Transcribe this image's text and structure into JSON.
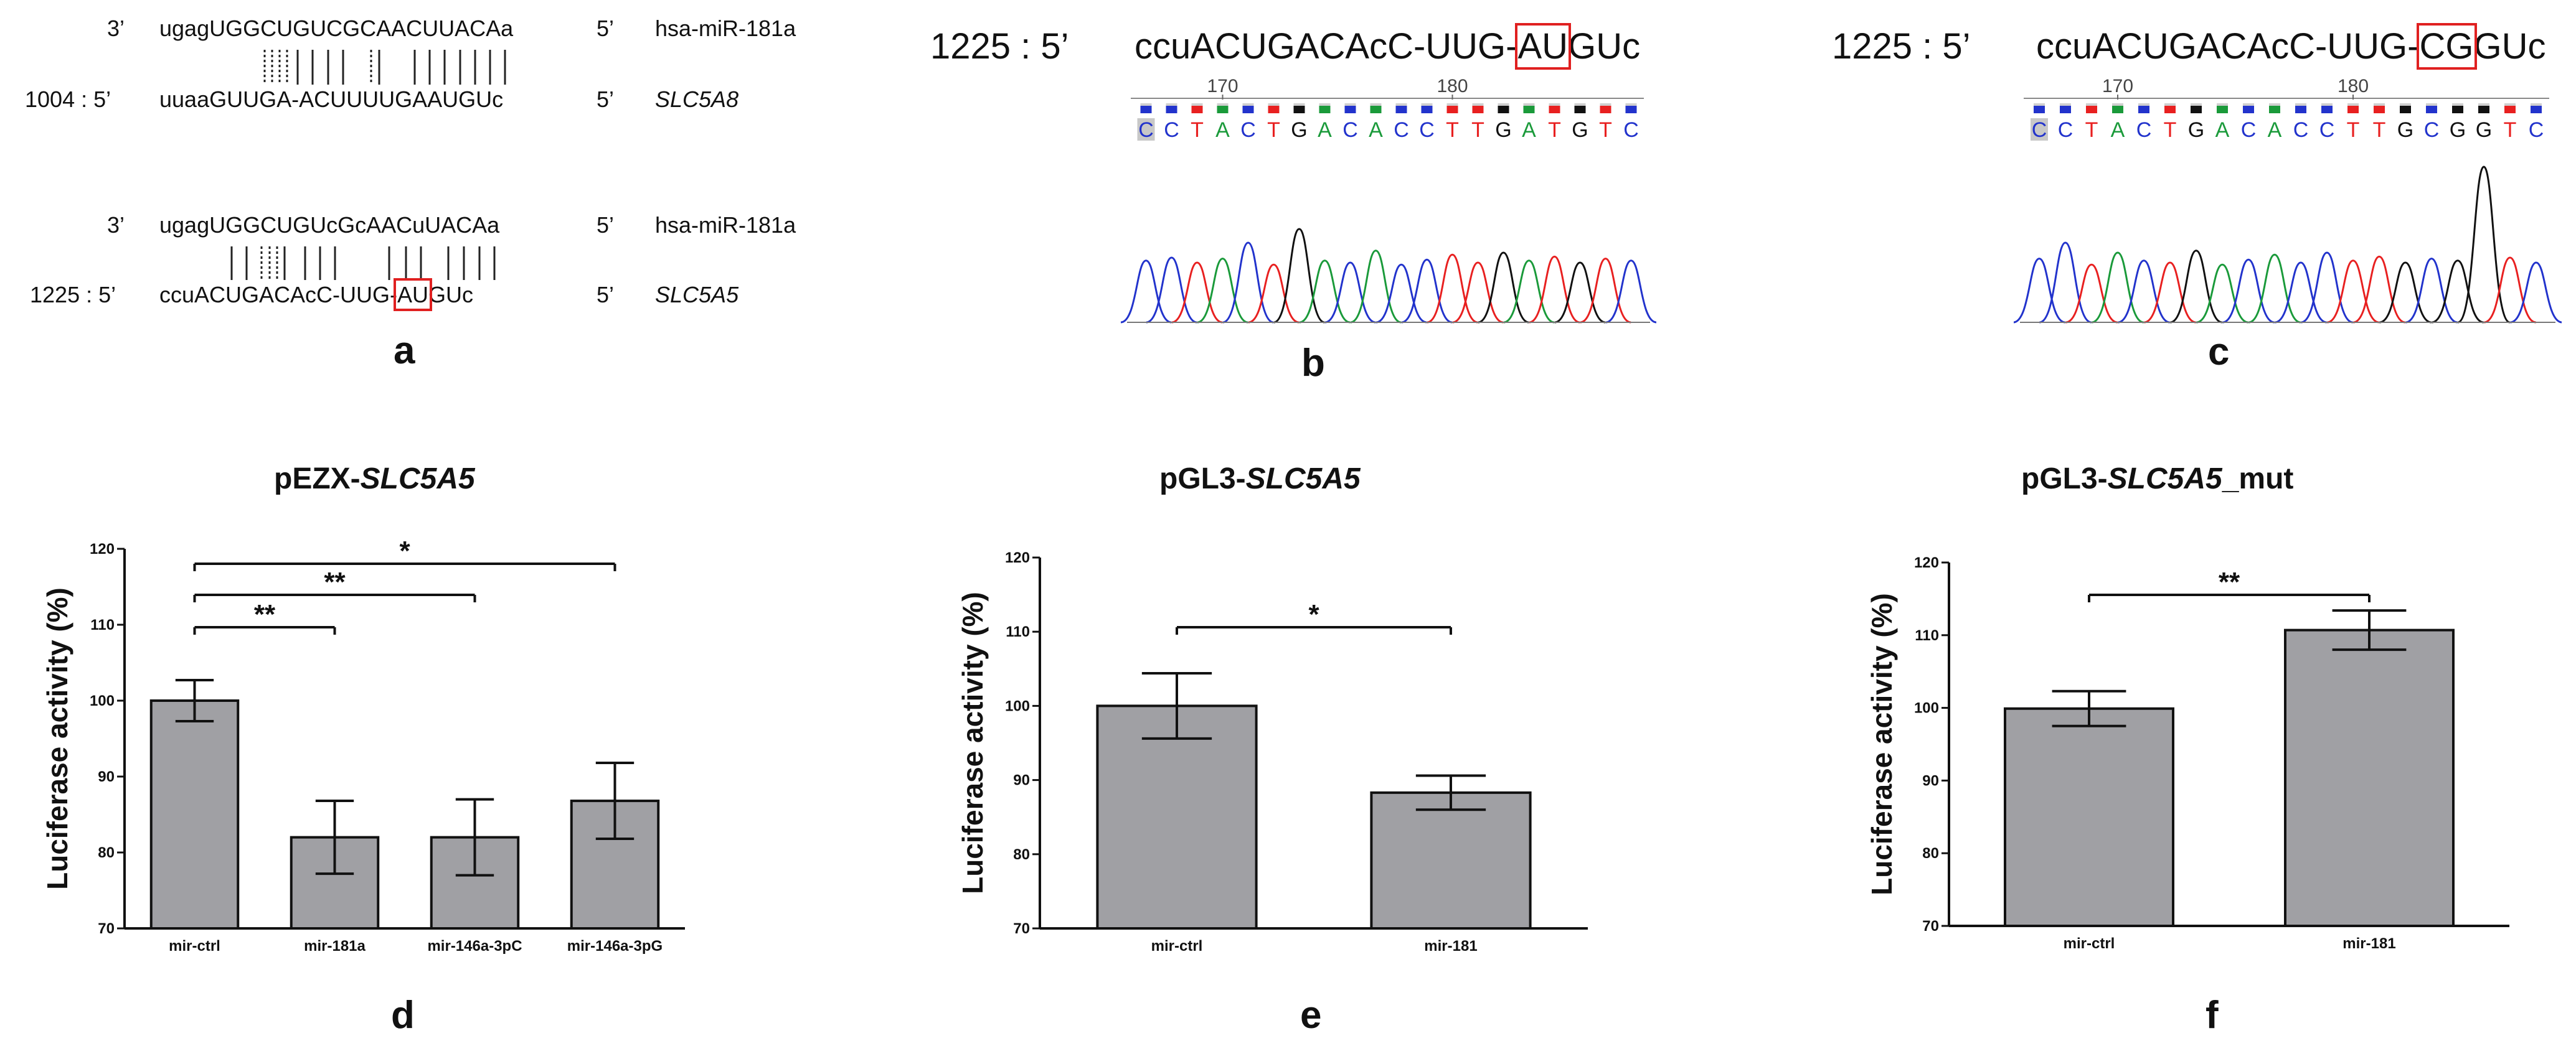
{
  "panel_a": {
    "letter": "a",
    "top": {
      "mirna": {
        "prefix": "3’",
        "seq": "ugagUGGCUGUCGCAACUUACAa",
        "suffix": "5’",
        "name": "hsa-miR-181a"
      },
      "target": {
        "prefix": "1004 : 5’",
        "seq": "uuaaGUUGA-ACUUUUGAAUGUc",
        "suffix": "5’",
        "name": "SLC5A8"
      }
    },
    "bottom": {
      "mirna": {
        "prefix": "3’",
        "seq": "ugagUGGCUGUcGcAACuUACAa",
        "suffix": "5’",
        "name": "hsa-miR-181a"
      },
      "target": {
        "prefix": "1225 : 5’",
        "seq_before": "ccuACUGACAcC-UUG-",
        "seq_boxed": "AU",
        "seq_after": "GUc",
        "suffix": "5’",
        "name": "SLC5A5"
      }
    }
  },
  "panel_b": {
    "letter": "b",
    "header": {
      "prefix": "1225 : 5’",
      "seq_before": "ccuACUGACAcC-UUG-",
      "seq_boxed": "AU",
      "seq_after": "GUc"
    },
    "ticks": [
      "170",
      "180"
    ],
    "bases": "CCTACTGACACCTTGATGTC"
  },
  "panel_c": {
    "letter": "c",
    "header": {
      "prefix": "1225 : 5’",
      "seq_before": "ccuACUGACAcC-UUG-",
      "seq_boxed": "CG",
      "seq_after": "GUc"
    },
    "ticks": [
      "170",
      "180"
    ],
    "bases": "CCTACTGACACCTTGCGGTC"
  },
  "colors": {
    "A": "#1a9a3a",
    "C": "#2233cc",
    "G": "#111111",
    "T": "#e82020",
    "box": "#e02020",
    "bar": "#a0a0a4"
  },
  "chart_data": [
    {
      "type": "bar",
      "letter": "d",
      "title_prefix": "pEZX-",
      "title_italic": "SLC5A5",
      "title_suffix": "",
      "ylabel": "Luciferase activity (%)",
      "ylim": [
        70,
        120
      ],
      "yticks": [
        "70",
        "80",
        "90",
        "100",
        "110",
        "120"
      ],
      "categories": [
        "mir-ctrl",
        "mir-181a",
        "mir-146a-3pC",
        "mir-146a-3pG"
      ],
      "values": [
        100,
        82,
        82,
        86.8
      ],
      "errors": [
        2.7,
        4.8,
        5.0,
        5.0
      ],
      "significance": [
        {
          "from": 0,
          "to": 1,
          "label": "**"
        },
        {
          "from": 0,
          "to": 2,
          "label": "**"
        },
        {
          "from": 0,
          "to": 3,
          "label": "*"
        }
      ]
    },
    {
      "type": "bar",
      "letter": "e",
      "title_prefix": "pGL3-",
      "title_italic": "SLC5A5",
      "title_suffix": "",
      "ylabel": "Luciferase activity (%)",
      "ylim": [
        70,
        120
      ],
      "yticks": [
        "70",
        "80",
        "90",
        "100",
        "110",
        "120"
      ],
      "categories": [
        "mir-ctrl",
        "mir-181"
      ],
      "values": [
        100,
        88.3
      ],
      "errors": [
        4.4,
        2.3
      ],
      "significance": [
        {
          "from": 0,
          "to": 1,
          "label": "*"
        }
      ]
    },
    {
      "type": "bar",
      "letter": "f",
      "title_prefix": "pGL3-",
      "title_italic": "SLC5A5",
      "title_suffix": "_mut",
      "ylabel": "Luciferase activity (%)",
      "ylim": [
        70,
        120
      ],
      "yticks": [
        "70",
        "80",
        "90",
        "100",
        "110",
        "120"
      ],
      "categories": [
        "mir-ctrl",
        "mir-181"
      ],
      "values": [
        99.9,
        110.7
      ],
      "errors": [
        2.4,
        2.7
      ],
      "significance": [
        {
          "from": 0,
          "to": 1,
          "label": "**"
        }
      ]
    }
  ]
}
